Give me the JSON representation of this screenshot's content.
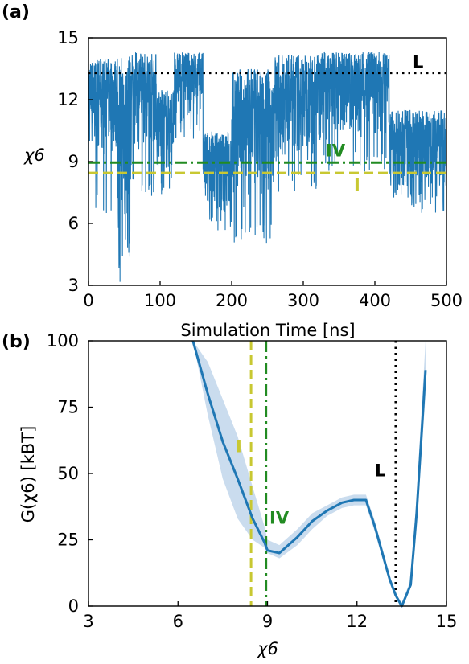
{
  "panel_a": {
    "label": "(a)",
    "xlabel": "Simulation Time [ns]",
    "ylabel": "χ6"
  },
  "panel_b": {
    "label": "(b)",
    "xlabel": "χ6",
    "ylabel": "G(χ6) [kBT]"
  },
  "chart_data": [
    {
      "type": "line",
      "panel": "(a)",
      "xlabel": "Simulation Time [ns]",
      "ylabel": "χ6",
      "xlim": [
        0,
        500
      ],
      "ylim": [
        3,
        15
      ],
      "xticks": [
        0,
        100,
        200,
        300,
        400,
        500
      ],
      "yticks": [
        3,
        6,
        9,
        12,
        15
      ],
      "grid": false,
      "series_color": "#1f77b4",
      "trace_segments": [
        {
          "t_start": 0,
          "t_end": 40,
          "low": 9.0,
          "high": 14.0,
          "spike": 6.5
        },
        {
          "t_start": 40,
          "t_end": 60,
          "low": 3.0,
          "high": 14.2,
          "spike": 3.0
        },
        {
          "t_start": 60,
          "t_end": 95,
          "low": 9.5,
          "high": 14.3,
          "spike": 7.3
        },
        {
          "t_start": 95,
          "t_end": 120,
          "low": 8.0,
          "high": 12.5,
          "spike": 7.2
        },
        {
          "t_start": 120,
          "t_end": 160,
          "low": 11.0,
          "high": 14.3,
          "spike": 10.0
        },
        {
          "t_start": 160,
          "t_end": 200,
          "low": 6.0,
          "high": 10.5,
          "spike": 5.5
        },
        {
          "t_start": 200,
          "t_end": 260,
          "low": 6.5,
          "high": 13.5,
          "spike": 5.0
        },
        {
          "t_start": 260,
          "t_end": 320,
          "low": 9.0,
          "high": 14.2,
          "spike": 7.5
        },
        {
          "t_start": 320,
          "t_end": 420,
          "low": 10.0,
          "high": 14.3,
          "spike": 8.5
        },
        {
          "t_start": 420,
          "t_end": 500,
          "low": 7.0,
          "high": 11.5,
          "spike": 6.5
        }
      ],
      "reference_lines": [
        {
          "label": "L",
          "y": 13.3,
          "style": "dotted",
          "color": "#000000"
        },
        {
          "label": "IV",
          "y": 8.95,
          "style": "dashdot",
          "color": "#228b22"
        },
        {
          "label": "I",
          "y": 8.45,
          "style": "dashed",
          "color": "#c8c832"
        }
      ]
    },
    {
      "type": "line",
      "panel": "(b)",
      "xlabel": "χ6",
      "ylabel": "G(χ6) [kBT]",
      "xlim": [
        3,
        15
      ],
      "ylim": [
        0,
        100
      ],
      "xticks": [
        3,
        6,
        9,
        12,
        15
      ],
      "yticks": [
        0,
        25,
        50,
        75,
        100
      ],
      "grid": false,
      "series_color": "#1f77b4",
      "band_color": "#b8d0e8",
      "x": [
        6.5,
        7.0,
        7.5,
        8.0,
        8.5,
        8.9,
        9.0,
        9.4,
        10.0,
        10.5,
        11.0,
        11.5,
        11.9,
        12.3,
        12.6,
        12.9,
        13.1,
        13.3,
        13.5,
        13.8,
        14.0,
        14.3
      ],
      "y": [
        100,
        80,
        62,
        48,
        33,
        24,
        21,
        20,
        26,
        32,
        36,
        39,
        40,
        40,
        30,
        18,
        10,
        4,
        0,
        8,
        35,
        89
      ],
      "band_lower": [
        100,
        72,
        48,
        33,
        25,
        22,
        20,
        18,
        23,
        29,
        34,
        37,
        38,
        38,
        28,
        16,
        9,
        3,
        0,
        7,
        30,
        80
      ],
      "band_upper": [
        100,
        92,
        78,
        64,
        45,
        30,
        25,
        23,
        29,
        35,
        38,
        41,
        42,
        42,
        32,
        20,
        11,
        5,
        1,
        10,
        42,
        100
      ],
      "reference_lines": [
        {
          "label": "L",
          "x": 13.3,
          "style": "dotted",
          "color": "#000000"
        },
        {
          "label": "IV",
          "x": 8.95,
          "style": "dashdot",
          "color": "#228b22"
        },
        {
          "label": "I",
          "x": 8.45,
          "style": "dashed",
          "color": "#c8c832"
        }
      ]
    }
  ]
}
